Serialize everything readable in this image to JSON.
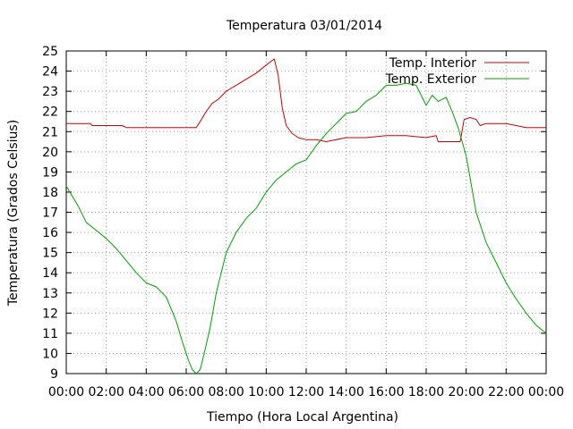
{
  "chart_data": {
    "type": "line",
    "title": "Temperatura 03/01/2014",
    "xlabel": "Tiempo (Hora Local Argentina)",
    "ylabel": "Temperatura (Grados Celsius)",
    "xlim": [
      0,
      24
    ],
    "ylim": [
      9,
      25
    ],
    "grid": true,
    "legend_position": "top-right",
    "x_tick_labels": [
      "00:00",
      "02:00",
      "04:00",
      "06:00",
      "08:00",
      "10:00",
      "12:00",
      "14:00",
      "16:00",
      "18:00",
      "20:00",
      "22:00",
      "00:00"
    ],
    "y_ticks": [
      9,
      10,
      11,
      12,
      13,
      14,
      15,
      16,
      17,
      18,
      19,
      20,
      21,
      22,
      23,
      24,
      25
    ],
    "series": [
      {
        "name": "Temp. Interior",
        "color": "#cc0000",
        "x": [
          0,
          1.2,
          1.3,
          2.0,
          2.8,
          3.0,
          4.0,
          5.0,
          6.0,
          6.5,
          6.7,
          7.0,
          7.3,
          7.6,
          8.0,
          8.5,
          9.0,
          9.5,
          10.0,
          10.4,
          10.6,
          10.8,
          11.0,
          11.3,
          11.6,
          12.0,
          12.5,
          13.0,
          14.0,
          15.0,
          16.0,
          17.0,
          18.0,
          18.5,
          18.6,
          19.0,
          19.5,
          19.7,
          19.9,
          20.2,
          20.5,
          20.7,
          21.0,
          22.0,
          22.5,
          23.0,
          24.0
        ],
        "y": [
          21.4,
          21.4,
          21.3,
          21.3,
          21.3,
          21.2,
          21.2,
          21.2,
          21.2,
          21.2,
          21.5,
          22.0,
          22.4,
          22.6,
          23.0,
          23.3,
          23.6,
          23.9,
          24.3,
          24.6,
          23.8,
          22.2,
          21.3,
          20.9,
          20.7,
          20.6,
          20.6,
          20.5,
          20.7,
          20.7,
          20.8,
          20.8,
          20.7,
          20.8,
          20.5,
          20.5,
          20.5,
          20.5,
          21.6,
          21.7,
          21.6,
          21.3,
          21.4,
          21.4,
          21.3,
          21.2,
          21.2
        ]
      },
      {
        "name": "Temp. Exterior",
        "color": "#00a000",
        "x": [
          0,
          0.3,
          0.6,
          1.0,
          1.5,
          2.0,
          2.5,
          3.0,
          3.5,
          4.0,
          4.5,
          5.0,
          5.5,
          5.8,
          6.1,
          6.3,
          6.5,
          6.7,
          6.9,
          7.2,
          7.5,
          8.0,
          8.5,
          9.0,
          9.5,
          10.0,
          10.5,
          11.0,
          11.5,
          12.0,
          12.5,
          13.0,
          13.5,
          14.0,
          14.5,
          15.0,
          15.5,
          16.0,
          16.5,
          17.0,
          17.5,
          18.0,
          18.3,
          18.6,
          19.0,
          19.3,
          19.6,
          20.0,
          20.5,
          21.0,
          21.5,
          22.0,
          22.5,
          23.0,
          23.5,
          24.0
        ],
        "y": [
          18.3,
          17.8,
          17.3,
          16.5,
          16.1,
          15.7,
          15.2,
          14.6,
          14.0,
          13.5,
          13.3,
          12.8,
          11.6,
          10.6,
          9.7,
          9.2,
          9.0,
          9.2,
          10.0,
          11.3,
          13.0,
          15.0,
          16.0,
          16.7,
          17.2,
          18.0,
          18.6,
          19.0,
          19.4,
          19.6,
          20.3,
          20.9,
          21.4,
          21.9,
          22.0,
          22.5,
          22.8,
          23.3,
          23.3,
          23.4,
          23.3,
          22.3,
          22.8,
          22.5,
          22.7,
          22.0,
          21.2,
          19.8,
          17.0,
          15.5,
          14.5,
          13.5,
          12.7,
          12.0,
          11.4,
          11.0
        ]
      }
    ]
  }
}
